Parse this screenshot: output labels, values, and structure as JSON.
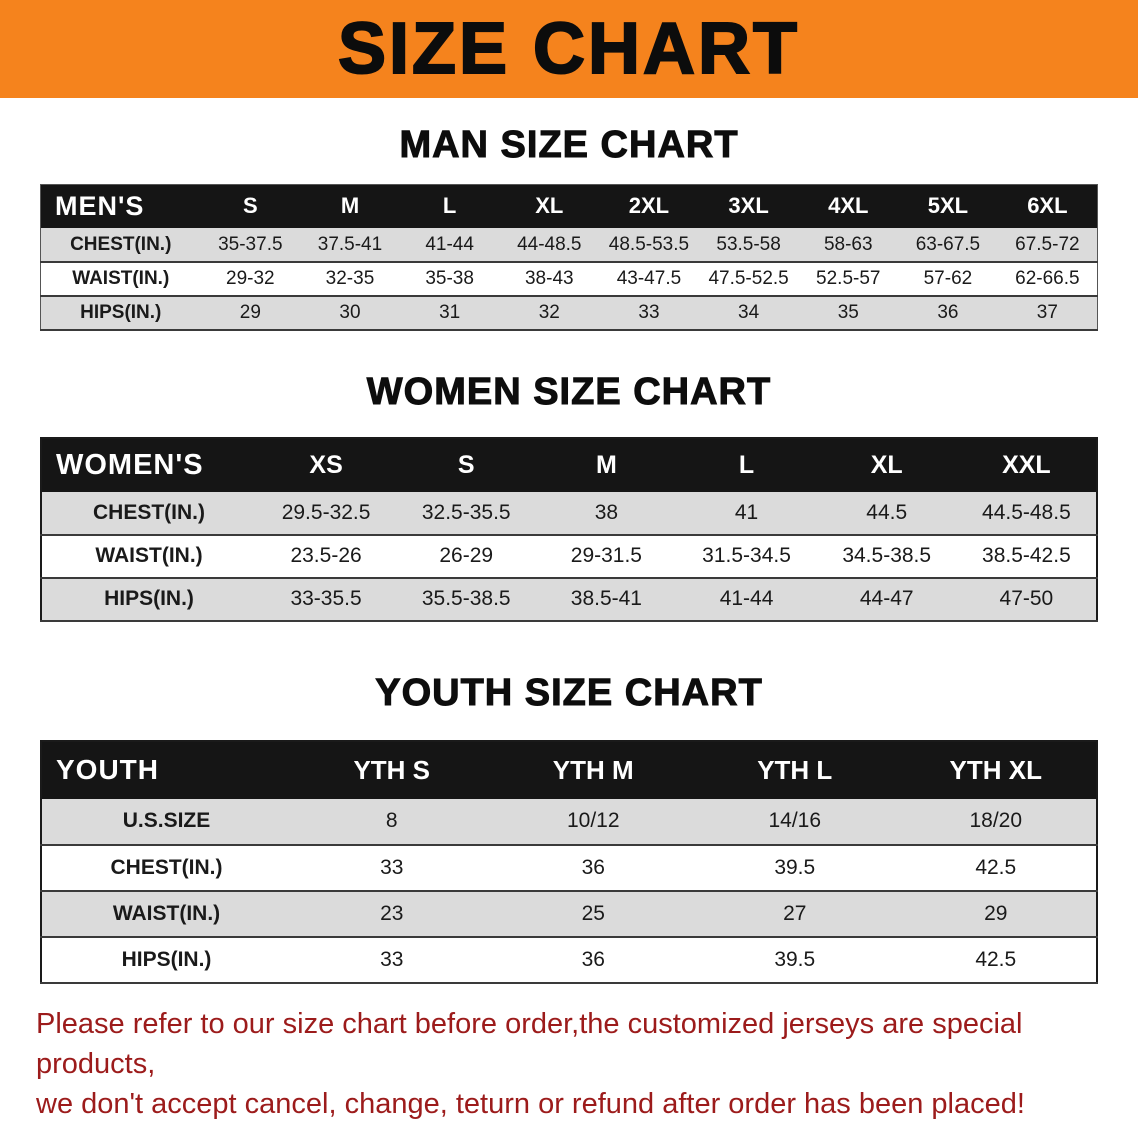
{
  "banner": {
    "title": "SIZE CHART"
  },
  "colors": {
    "banner_bg": "#F5831D",
    "table_header_bg": "#151515",
    "table_header_text": "#FFFFFF",
    "row_alt_bg": "#DBDBDB",
    "notice_text": "#9C1B1B"
  },
  "chart_data": [
    {
      "type": "table",
      "id": "men",
      "title": "MAN SIZE CHART",
      "corner_label": "MEN'S",
      "columns": [
        "S",
        "M",
        "L",
        "XL",
        "2XL",
        "3XL",
        "4XL",
        "5XL",
        "6XL"
      ],
      "rows": [
        {
          "label": "CHEST(IN.)",
          "values": [
            "35-37.5",
            "37.5-41",
            "41-44",
            "44-48.5",
            "48.5-53.5",
            "53.5-58",
            "58-63",
            "63-67.5",
            "67.5-72"
          ]
        },
        {
          "label": "WAIST(IN.)",
          "values": [
            "29-32",
            "32-35",
            "35-38",
            "38-43",
            "43-47.5",
            "47.5-52.5",
            "52.5-57",
            "57-62",
            "62-66.5"
          ]
        },
        {
          "label": "HIPS(IN.)",
          "values": [
            "29",
            "30",
            "31",
            "32",
            "33",
            "34",
            "35",
            "36",
            "37"
          ]
        }
      ]
    },
    {
      "type": "table",
      "id": "women",
      "title": "WOMEN SIZE CHART",
      "corner_label": "WOMEN'S",
      "columns": [
        "XS",
        "S",
        "M",
        "L",
        "XL",
        "XXL"
      ],
      "rows": [
        {
          "label": "CHEST(IN.)",
          "values": [
            "29.5-32.5",
            "32.5-35.5",
            "38",
            "41",
            "44.5",
            "44.5-48.5"
          ]
        },
        {
          "label": "WAIST(IN.)",
          "values": [
            "23.5-26",
            "26-29",
            "29-31.5",
            "31.5-34.5",
            "34.5-38.5",
            "38.5-42.5"
          ]
        },
        {
          "label": "HIPS(IN.)",
          "values": [
            "33-35.5",
            "35.5-38.5",
            "38.5-41",
            "41-44",
            "44-47",
            "47-50"
          ]
        }
      ]
    },
    {
      "type": "table",
      "id": "youth",
      "title": "YOUTH SIZE CHART",
      "corner_label": "YOUTH",
      "columns": [
        "YTH S",
        "YTH M",
        "YTH L",
        "YTH XL"
      ],
      "rows": [
        {
          "label": "U.S.SIZE",
          "values": [
            "8",
            "10/12",
            "14/16",
            "18/20"
          ]
        },
        {
          "label": "CHEST(IN.)",
          "values": [
            "33",
            "36",
            "39.5",
            "42.5"
          ]
        },
        {
          "label": "WAIST(IN.)",
          "values": [
            "23",
            "25",
            "27",
            "29"
          ]
        },
        {
          "label": "HIPS(IN.)",
          "values": [
            "33",
            "36",
            "39.5",
            "42.5"
          ]
        }
      ]
    }
  ],
  "footer": {
    "line1": "Please refer to our size chart before order,the customized jerseys are special products,",
    "line2": "we don't accept cancel, change, teturn or refund after order has been placed!"
  }
}
